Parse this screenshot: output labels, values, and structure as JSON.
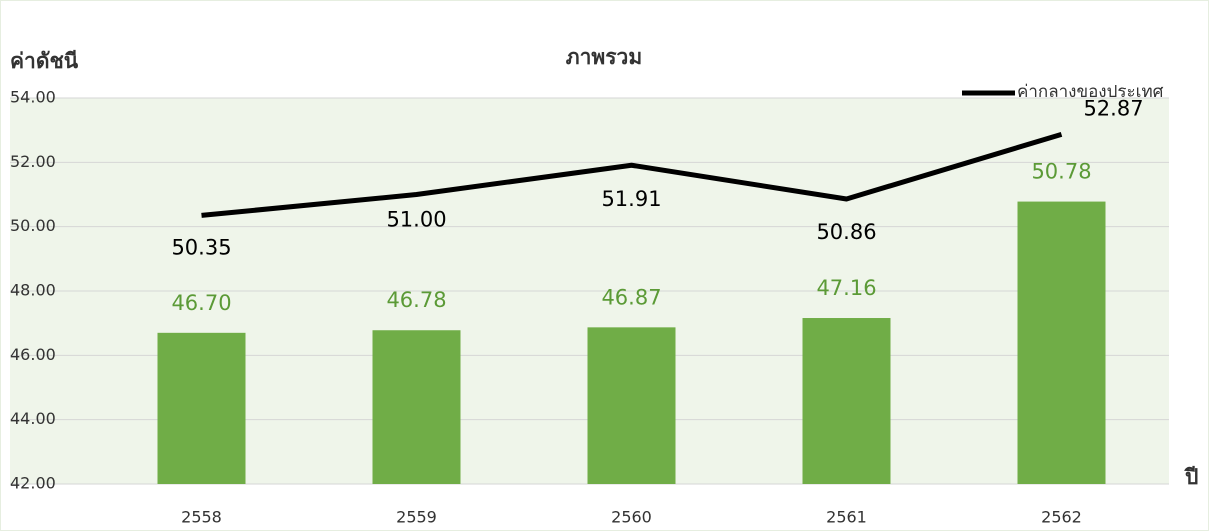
{
  "chart_data": {
    "type": "bar",
    "title": "ภาพรวม",
    "y_label": "ค่าดัชนี",
    "x_label": "ปี",
    "categories": [
      "2558",
      "2559",
      "2560",
      "2561",
      "2562"
    ],
    "series": [
      {
        "type": "bar",
        "color": "#70ad47",
        "label_color": "#5b9a36",
        "values": [
          46.7,
          46.78,
          46.87,
          47.16,
          50.78
        ],
        "value_labels": [
          "46.70",
          "46.78",
          "46.87",
          "47.16",
          "50.78"
        ]
      },
      {
        "type": "line",
        "name": "ค่ากลางของประเทศ",
        "color": "#000000",
        "values": [
          50.35,
          51.0,
          51.91,
          50.86,
          52.87
        ],
        "value_labels": [
          "50.35",
          "51.00",
          "51.91",
          "50.86",
          "52.87"
        ]
      }
    ],
    "ylim": [
      42,
      54
    ],
    "yticks": [
      {
        "value": 42,
        "label": "42.00"
      },
      {
        "value": 44,
        "label": "44.00"
      },
      {
        "value": 46,
        "label": "46.00"
      },
      {
        "value": 48,
        "label": "48.00"
      },
      {
        "value": 50,
        "label": "50.00"
      },
      {
        "value": 52,
        "label": "52.00"
      },
      {
        "value": 54,
        "label": "54.00"
      }
    ],
    "grid": true,
    "legend": "top-right"
  }
}
